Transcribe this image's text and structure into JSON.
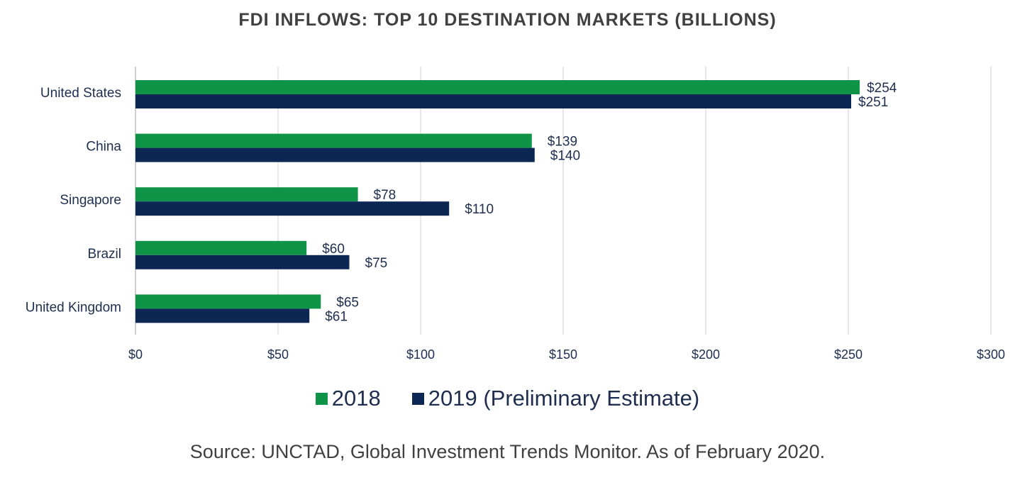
{
  "chart_data": {
    "type": "bar",
    "orientation": "horizontal",
    "title": "FDI INFLOWS: TOP 10 DESTINATION MARKETS (BILLIONS)",
    "categories": [
      "United States",
      "China",
      "Singapore",
      "Brazil",
      "United Kingdom"
    ],
    "series": [
      {
        "name": "2018",
        "color": "#0f9346",
        "values": [
          254,
          139,
          78,
          60,
          65
        ],
        "labels": [
          "$254",
          "$139",
          "$78",
          "$60",
          "$65"
        ]
      },
      {
        "name": "2019 (Preliminary Estimate)",
        "color": "#0d2755",
        "values": [
          251,
          140,
          110,
          75,
          61
        ],
        "labels": [
          "$251",
          "$140",
          "$110",
          "$75",
          "$61"
        ]
      }
    ],
    "xlim": [
      0,
      300
    ],
    "x_ticks": [
      0,
      50,
      100,
      150,
      200,
      250,
      300
    ],
    "x_tick_labels": [
      "$0",
      "$50",
      "$100",
      "$150",
      "$200",
      "$250",
      "$300"
    ],
    "grid": true,
    "legend_position": "bottom",
    "source": "Source: UNCTAD, Global Investment Trends Monitor. As of February 2020."
  }
}
